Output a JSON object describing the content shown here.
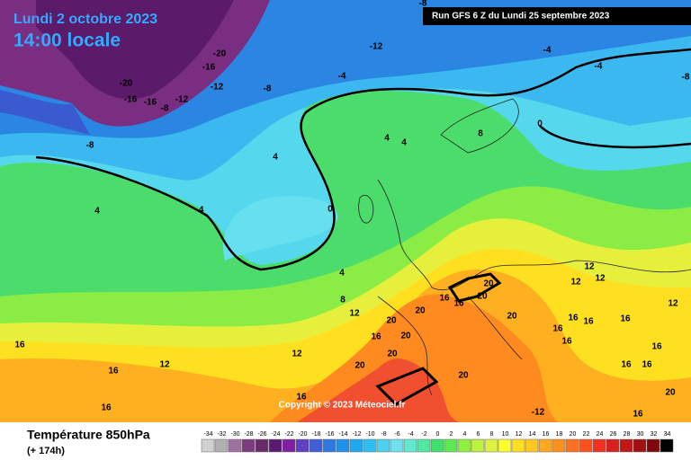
{
  "header": {
    "date": "Lundi 2 octobre 2023",
    "time": "14:00 locale",
    "run": "Run GFS 6 Z du Lundi 25 septembre 2023"
  },
  "copyright": "Copyright © 2023 Méteociel.fr",
  "footer": {
    "title": "Température 850hPa",
    "lead": "(+ 174h)"
  },
  "legend": {
    "labels": [
      -34,
      -32,
      -30,
      -28,
      -26,
      -24,
      -22,
      -20,
      -18,
      -16,
      -14,
      -12,
      -10,
      -8,
      -6,
      -4,
      -2,
      0,
      2,
      4,
      6,
      8,
      10,
      12,
      14,
      16,
      18,
      20,
      22,
      24,
      26,
      28,
      30,
      32,
      34
    ],
    "colors": [
      "#d0d0d0",
      "#b0b0b0",
      "#a070a0",
      "#803a80",
      "#6a2a6a",
      "#5a1a70",
      "#8020a0",
      "#6040c0",
      "#4060d8",
      "#3078e0",
      "#2090e8",
      "#20a8f0",
      "#30c0f0",
      "#50d0f0",
      "#70e0f0",
      "#60e8d0",
      "#50e8a0",
      "#40e070",
      "#60e850",
      "#90f040",
      "#c0f040",
      "#e0f040",
      "#ffff30",
      "#ffe020",
      "#ffc820",
      "#ffaa20",
      "#ff9020",
      "#ff7020",
      "#ff5020",
      "#f03020",
      "#d82020",
      "#c01818",
      "#a01010",
      "#800808",
      "#000000"
    ]
  },
  "contour_labels": [
    -8,
    -12,
    -16,
    -20,
    -20,
    -16,
    -16,
    -12,
    -12,
    -8,
    -8,
    -4,
    -8,
    -4,
    -4,
    -8,
    -4,
    0,
    0,
    4,
    4,
    4,
    4,
    4,
    8,
    8,
    12,
    12,
    12,
    16,
    16,
    16,
    16,
    16,
    16,
    20,
    20,
    20,
    20,
    20,
    20,
    20,
    20,
    20,
    16,
    12,
    12,
    12,
    16,
    16,
    16,
    16,
    16,
    12,
    16,
    16,
    16,
    20,
    -12,
    16
  ]
}
